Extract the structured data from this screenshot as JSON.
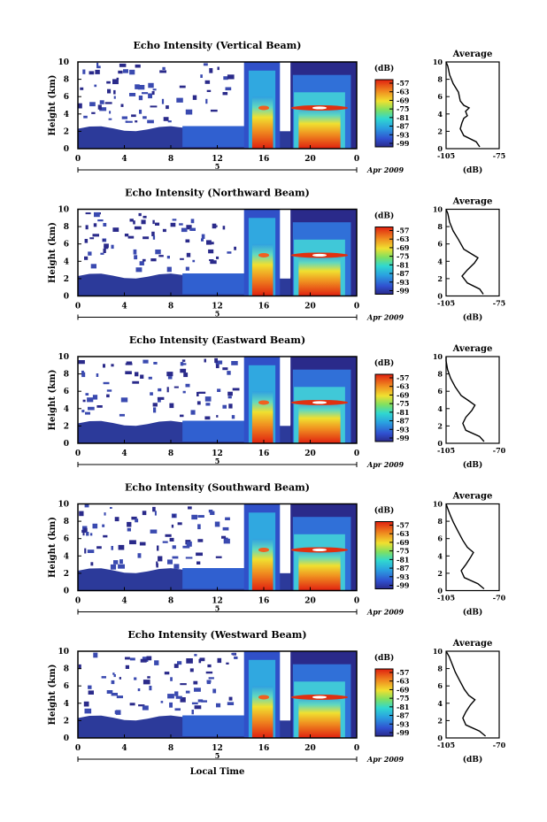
{
  "chart_data": [
    {
      "type": "heatmap",
      "title": "Echo Intensity (Vertical Beam)",
      "ylabel": "Height (km)",
      "xticks": [
        "0",
        "4",
        "8",
        "12",
        "16",
        "20",
        "0"
      ],
      "yticks": [
        "0",
        "2",
        "4",
        "6",
        "8",
        "10"
      ],
      "date_label": "5",
      "month_label": "Apr 2009",
      "xlim": [
        0,
        24
      ],
      "ylim": [
        0,
        10
      ],
      "colorbar": {
        "unit": "(dB)",
        "ticks": [
          "-57",
          "-63",
          "-69",
          "-75",
          "-81",
          "-87",
          "-93",
          "-99"
        ]
      },
      "average": {
        "title": "Average",
        "xlabel": "(dB)",
        "xticks": [
          "-105",
          "-75"
        ],
        "xlim": [
          -105,
          -75
        ],
        "yticks": [
          "0",
          "2",
          "4",
          "6",
          "8",
          "10"
        ],
        "profile": [
          [
            -86,
            0.2
          ],
          [
            -88,
            0.8
          ],
          [
            -95,
            1.5
          ],
          [
            -97,
            2.3
          ],
          [
            -96,
            3.0
          ],
          [
            -95,
            3.5
          ],
          [
            -93,
            3.8
          ],
          [
            -94,
            4.3
          ],
          [
            -92,
            4.7
          ],
          [
            -95,
            5.0
          ],
          [
            -97,
            5.5
          ],
          [
            -98,
            6.5
          ],
          [
            -101,
            7.5
          ],
          [
            -103,
            8.5
          ],
          [
            -104,
            9.5
          ],
          [
            -105,
            10
          ]
        ]
      }
    },
    {
      "type": "heatmap",
      "title": "Echo Intensity (Northward Beam)",
      "ylabel": "Height (km)",
      "xticks": [
        "0",
        "4",
        "8",
        "12",
        "16",
        "20",
        "0"
      ],
      "yticks": [
        "0",
        "2",
        "4",
        "6",
        "8",
        "10"
      ],
      "date_label": "5",
      "month_label": "Apr 2009",
      "xlim": [
        0,
        24
      ],
      "ylim": [
        0,
        10
      ],
      "colorbar": {
        "unit": "(dB)",
        "ticks": [
          "-57",
          "-63",
          "-69",
          "-75",
          "-81",
          "-87",
          "-93",
          "-99"
        ]
      },
      "average": {
        "title": "Average",
        "xlabel": "(dB)",
        "xticks": [
          "-105",
          "-75"
        ],
        "xlim": [
          -105,
          -75
        ],
        "yticks": [
          "0",
          "2",
          "4",
          "6",
          "8",
          "10"
        ],
        "profile": [
          [
            -84,
            0.2
          ],
          [
            -86,
            0.8
          ],
          [
            -93,
            1.5
          ],
          [
            -96,
            2.3
          ],
          [
            -93,
            3.0
          ],
          [
            -89,
            3.8
          ],
          [
            -87,
            4.4
          ],
          [
            -91,
            4.9
          ],
          [
            -95,
            5.4
          ],
          [
            -98,
            6.5
          ],
          [
            -101,
            7.5
          ],
          [
            -103,
            8.5
          ],
          [
            -104,
            9.5
          ],
          [
            -105,
            10
          ]
        ]
      }
    },
    {
      "type": "heatmap",
      "title": "Echo Intensity (Eastward Beam)",
      "ylabel": "Height (km)",
      "xticks": [
        "0",
        "4",
        "8",
        "12",
        "16",
        "20",
        "0"
      ],
      "yticks": [
        "0",
        "2",
        "4",
        "6",
        "8",
        "10"
      ],
      "date_label": "5",
      "month_label": "Apr 2009",
      "xlim": [
        0,
        24
      ],
      "ylim": [
        0,
        10
      ],
      "colorbar": {
        "unit": "(dB)",
        "ticks": [
          "-57",
          "-63",
          "-69",
          "-75",
          "-81",
          "-87",
          "-93",
          "-99"
        ]
      },
      "average": {
        "title": "Average",
        "xlabel": "(dB)",
        "xticks": [
          "-105",
          "-70"
        ],
        "xlim": [
          -105,
          -70
        ],
        "yticks": [
          "0",
          "2",
          "4",
          "6",
          "8",
          "10"
        ],
        "profile": [
          [
            -80,
            0.2
          ],
          [
            -83,
            0.8
          ],
          [
            -92,
            1.5
          ],
          [
            -94,
            2.3
          ],
          [
            -92,
            3.0
          ],
          [
            -88,
            3.8
          ],
          [
            -86,
            4.4
          ],
          [
            -90,
            4.9
          ],
          [
            -95,
            5.5
          ],
          [
            -99,
            6.5
          ],
          [
            -102,
            7.5
          ],
          [
            -104,
            8.5
          ],
          [
            -105,
            9.5
          ],
          [
            -105,
            10
          ]
        ]
      }
    },
    {
      "type": "heatmap",
      "title": "Echo Intensity (Southward Beam)",
      "ylabel": "Height (km)",
      "xticks": [
        "0",
        "4",
        "8",
        "12",
        "16",
        "20",
        "0"
      ],
      "yticks": [
        "0",
        "2",
        "4",
        "6",
        "8",
        "10"
      ],
      "date_label": "5",
      "month_label": "Apr 2009",
      "xlim": [
        0,
        24
      ],
      "ylim": [
        0,
        10
      ],
      "colorbar": {
        "unit": "(dB)",
        "ticks": [
          "-57",
          "-63",
          "-69",
          "-75",
          "-81",
          "-87",
          "-93",
          "-99"
        ]
      },
      "average": {
        "title": "Average",
        "xlabel": "(dB)",
        "xticks": [
          "-105",
          "-70"
        ],
        "xlim": [
          -105,
          -70
        ],
        "yticks": [
          "0",
          "2",
          "4",
          "6",
          "8",
          "10"
        ],
        "profile": [
          [
            -80,
            0.2
          ],
          [
            -84,
            0.8
          ],
          [
            -93,
            1.5
          ],
          [
            -95,
            2.3
          ],
          [
            -92,
            3.0
          ],
          [
            -89,
            3.8
          ],
          [
            -87,
            4.4
          ],
          [
            -91,
            5.0
          ],
          [
            -94,
            5.8
          ],
          [
            -97,
            6.8
          ],
          [
            -100,
            7.8
          ],
          [
            -102,
            8.6
          ],
          [
            -104,
            9.5
          ],
          [
            -105,
            10
          ]
        ]
      }
    },
    {
      "type": "heatmap",
      "title": "Echo Intensity (Westward Beam)",
      "ylabel": "Height (km)",
      "xticks": [
        "0",
        "4",
        "8",
        "12",
        "16",
        "20",
        "0"
      ],
      "yticks": [
        "0",
        "2",
        "4",
        "6",
        "8",
        "10"
      ],
      "date_label": "5",
      "month_label": "Apr 2009",
      "xlim": [
        0,
        24
      ],
      "ylim": [
        0,
        10
      ],
      "xlabel": "Local Time",
      "colorbar": {
        "unit": "(dB)",
        "ticks": [
          "-57",
          "-63",
          "-69",
          "-75",
          "-81",
          "-87",
          "-93",
          "-99"
        ]
      },
      "average": {
        "title": "Average",
        "xlabel": "(dB)",
        "xticks": [
          "-105",
          "-70"
        ],
        "xlim": [
          -105,
          -70
        ],
        "yticks": [
          "0",
          "2",
          "4",
          "6",
          "8",
          "10"
        ],
        "profile": [
          [
            -79,
            0.2
          ],
          [
            -83,
            0.8
          ],
          [
            -92,
            1.5
          ],
          [
            -94,
            2.3
          ],
          [
            -92,
            3.0
          ],
          [
            -89,
            3.8
          ],
          [
            -86,
            4.4
          ],
          [
            -90,
            4.9
          ],
          [
            -93,
            5.6
          ],
          [
            -96,
            6.6
          ],
          [
            -99,
            7.6
          ],
          [
            -101,
            8.5
          ],
          [
            -103,
            9.4
          ],
          [
            -105,
            10
          ]
        ]
      }
    }
  ]
}
